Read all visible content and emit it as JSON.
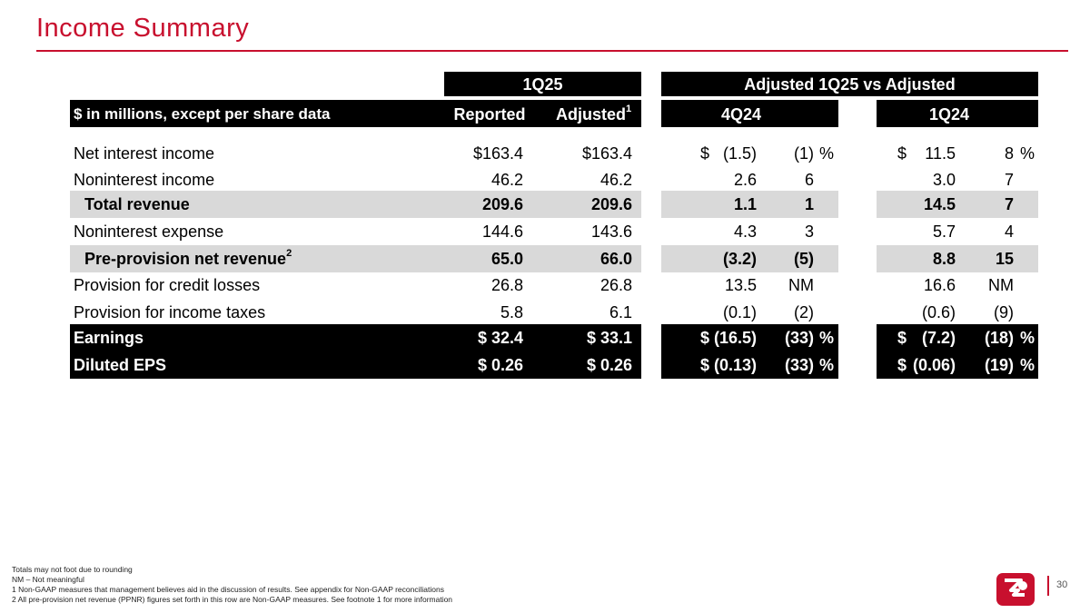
{
  "title": "Income Summary",
  "header": {
    "group_1q25": "1Q25",
    "group_adjusted": "Adjusted 1Q25 vs Adjusted",
    "units_label": "$ in millions, except per share data",
    "col_reported": "Reported",
    "col_adjusted": "Adjusted",
    "col_adjusted_sup": "1",
    "col_4q24": "4Q24",
    "col_1q24": "1Q24"
  },
  "rows": [
    {
      "label": "Net interest income",
      "sup": "",
      "reported": "$163.4",
      "adjusted": "$163.4",
      "q4_dollar": "$",
      "q4_amt": "(1.5)",
      "q4_pct": "(1)",
      "q4_pctsign": "%",
      "q1_dollar": "$",
      "q1_amt": "11.5",
      "q1_pct": "8",
      "q1_pctsign": "%"
    },
    {
      "label": "Noninterest income",
      "sup": "",
      "reported": "46.2",
      "adjusted": "46.2",
      "q4_dollar": "",
      "q4_amt": "2.6",
      "q4_pct": "6",
      "q4_pctsign": "",
      "q1_dollar": "",
      "q1_amt": "3.0",
      "q1_pct": "7",
      "q1_pctsign": ""
    },
    {
      "label": "Total revenue",
      "sup": "",
      "reported": "209.6",
      "adjusted": "209.6",
      "q4_dollar": "",
      "q4_amt": "1.1",
      "q4_pct": "1",
      "q4_pctsign": "",
      "q1_dollar": "",
      "q1_amt": "14.5",
      "q1_pct": "7",
      "q1_pctsign": ""
    },
    {
      "label": "Noninterest expense",
      "sup": "",
      "reported": "144.6",
      "adjusted": "143.6",
      "q4_dollar": "",
      "q4_amt": "4.3",
      "q4_pct": "3",
      "q4_pctsign": "",
      "q1_dollar": "",
      "q1_amt": "5.7",
      "q1_pct": "4",
      "q1_pctsign": ""
    },
    {
      "label": "Pre-provision net revenue",
      "sup": "2",
      "reported": "65.0",
      "adjusted": "66.0",
      "q4_dollar": "",
      "q4_amt": "(3.2)",
      "q4_pct": "(5)",
      "q4_pctsign": "",
      "q1_dollar": "",
      "q1_amt": "8.8",
      "q1_pct": "15",
      "q1_pctsign": ""
    },
    {
      "label": "Provision for credit losses",
      "sup": "",
      "reported": "26.8",
      "adjusted": "26.8",
      "q4_dollar": "",
      "q4_amt": "13.5",
      "q4_pct": "NM",
      "q4_pctsign": "",
      "q1_dollar": "",
      "q1_amt": "16.6",
      "q1_pct": "NM",
      "q1_pctsign": ""
    },
    {
      "label": "Provision for income taxes",
      "sup": "",
      "reported": "5.8",
      "adjusted": "6.1",
      "q4_dollar": "",
      "q4_amt": "(0.1)",
      "q4_pct": "(2)",
      "q4_pctsign": "",
      "q1_dollar": "",
      "q1_amt": "(0.6)",
      "q1_pct": "(9)",
      "q1_pctsign": ""
    },
    {
      "label": "Earnings",
      "sup": "",
      "reported": "$ 32.4",
      "adjusted": "$ 33.1",
      "q4_dollar": "$",
      "q4_amt": "(16.5)",
      "q4_pct": "(33)",
      "q4_pctsign": "%",
      "q1_dollar": "$",
      "q1_amt": "(7.2)",
      "q1_pct": "(18)",
      "q1_pctsign": "%"
    },
    {
      "label": "Diluted EPS",
      "sup": "",
      "reported": "$ 0.26",
      "adjusted": "$ 0.26",
      "q4_dollar": "$",
      "q4_amt": "(0.13)",
      "q4_pct": "(33)",
      "q4_pctsign": "%",
      "q1_dollar": "$",
      "q1_amt": "(0.06)",
      "q1_pct": "(19)",
      "q1_pctsign": "%"
    }
  ],
  "footnotes": [
    "Totals may not foot due to rounding",
    "NM – Not meaningful",
    "1   Non-GAAP measures that management believes aid in the discussion of results. See appendix for Non-GAAP reconciliations",
    "2   All pre-provision net revenue (PPNR) figures set forth in this row are Non-GAAP measures. See footnote 1 for more information"
  ],
  "page_number": "30",
  "colors": {
    "accent": "#c8102e",
    "header_bg": "#000000",
    "band_bg": "#d9d9d9"
  }
}
